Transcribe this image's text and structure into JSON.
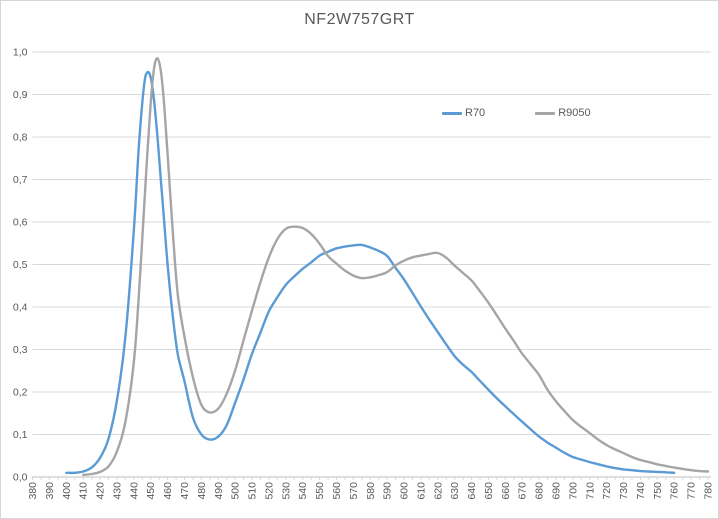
{
  "window": {
    "background": "#FFFFFF",
    "border_color": "#D6D6D6"
  },
  "styles": {
    "grid_color": "#D9D9D9",
    "axis_line_color": "#BFBFBF",
    "tick_color": "#D9D9D9",
    "tick_label_color": "#595959",
    "title_color": "#595959"
  },
  "chart_data": {
    "type": "line",
    "title": "NF2W757GRT",
    "xlabel": "",
    "ylabel": "",
    "xlim": [
      380,
      780
    ],
    "ylim": [
      0.0,
      1.0
    ],
    "grid": "horizontal",
    "legend_position": "inside-top-center",
    "y_tick_labels": [
      "1,0",
      "0,9",
      "0,8",
      "0,7",
      "0,6",
      "0,5",
      "0,4",
      "0,3",
      "0,2",
      "0,1",
      "0,0"
    ],
    "y_tick_values": [
      1.0,
      0.9,
      0.8,
      0.7,
      0.6,
      0.5,
      0.4,
      0.3,
      0.2,
      0.1,
      0.0
    ],
    "x_tick_labels": [
      "380",
      "390",
      "400",
      "410",
      "420",
      "430",
      "440",
      "450",
      "460",
      "470",
      "480",
      "490",
      "500",
      "510",
      "520",
      "530",
      "540",
      "550",
      "560",
      "570",
      "580",
      "590",
      "600",
      "610",
      "620",
      "630",
      "640",
      "650",
      "660",
      "670",
      "680",
      "690",
      "700",
      "710",
      "720",
      "730",
      "740",
      "750",
      "760",
      "770",
      "780"
    ],
    "x_tick_values": [
      380,
      390,
      400,
      410,
      420,
      430,
      440,
      450,
      460,
      470,
      480,
      490,
      500,
      510,
      520,
      530,
      540,
      550,
      560,
      570,
      580,
      590,
      600,
      610,
      620,
      630,
      640,
      650,
      660,
      670,
      680,
      690,
      700,
      710,
      720,
      730,
      740,
      750,
      760,
      770,
      780
    ],
    "x": [
      400,
      405,
      410,
      415,
      420,
      425,
      430,
      435,
      440,
      443,
      446,
      448,
      450,
      452,
      454,
      456,
      458,
      460,
      463,
      466,
      470,
      475,
      480,
      485,
      490,
      495,
      500,
      505,
      510,
      515,
      520,
      525,
      530,
      535,
      540,
      545,
      550,
      555,
      560,
      565,
      570,
      575,
      580,
      585,
      590,
      595,
      600,
      605,
      610,
      615,
      620,
      625,
      630,
      635,
      640,
      645,
      650,
      655,
      660,
      665,
      670,
      675,
      680,
      685,
      690,
      695,
      700,
      705,
      710,
      715,
      720,
      725,
      730,
      735,
      740,
      745,
      750,
      755,
      760,
      765,
      770,
      775,
      780
    ],
    "series": [
      {
        "name": "R70",
        "color": "#5B9BD5",
        "values": [
          0.01,
          0.01,
          0.013,
          0.022,
          0.045,
          0.09,
          0.18,
          0.33,
          0.58,
          0.78,
          0.92,
          0.952,
          0.94,
          0.885,
          0.8,
          0.7,
          0.6,
          0.5,
          0.38,
          0.29,
          0.225,
          0.14,
          0.1,
          0.088,
          0.095,
          0.122,
          0.175,
          0.23,
          0.29,
          0.34,
          0.39,
          0.423,
          0.452,
          0.472,
          0.49,
          0.505,
          0.521,
          0.53,
          0.538,
          0.542,
          0.545,
          0.546,
          0.54,
          0.532,
          0.52,
          0.492,
          0.465,
          0.433,
          0.401,
          0.37,
          0.341,
          0.312,
          0.284,
          0.264,
          0.247,
          0.226,
          0.205,
          0.185,
          0.166,
          0.148,
          0.13,
          0.112,
          0.095,
          0.081,
          0.069,
          0.057,
          0.047,
          0.041,
          0.035,
          0.03,
          0.025,
          0.021,
          0.018,
          0.016,
          0.014,
          0.013,
          0.012,
          0.011,
          0.01,
          null,
          null,
          null,
          null
        ]
      },
      {
        "name": "R9050",
        "color": "#A5A5A5",
        "values": [
          null,
          null,
          0.005,
          0.007,
          0.012,
          0.025,
          0.06,
          0.13,
          0.27,
          0.43,
          0.63,
          0.76,
          0.88,
          0.962,
          0.985,
          0.955,
          0.875,
          0.76,
          0.58,
          0.43,
          0.33,
          0.235,
          0.17,
          0.152,
          0.161,
          0.196,
          0.251,
          0.322,
          0.392,
          0.459,
          0.517,
          0.56,
          0.584,
          0.589,
          0.586,
          0.572,
          0.549,
          0.52,
          0.502,
          0.486,
          0.474,
          0.468,
          0.47,
          0.475,
          0.482,
          0.498,
          0.509,
          0.517,
          0.521,
          0.525,
          0.527,
          0.516,
          0.497,
          0.48,
          0.462,
          0.437,
          0.41,
          0.38,
          0.349,
          0.32,
          0.29,
          0.265,
          0.24,
          0.205,
          0.178,
          0.155,
          0.134,
          0.118,
          0.103,
          0.088,
          0.075,
          0.065,
          0.056,
          0.047,
          0.04,
          0.035,
          0.03,
          0.026,
          0.022,
          0.019,
          0.016,
          0.014,
          0.013
        ]
      }
    ]
  }
}
